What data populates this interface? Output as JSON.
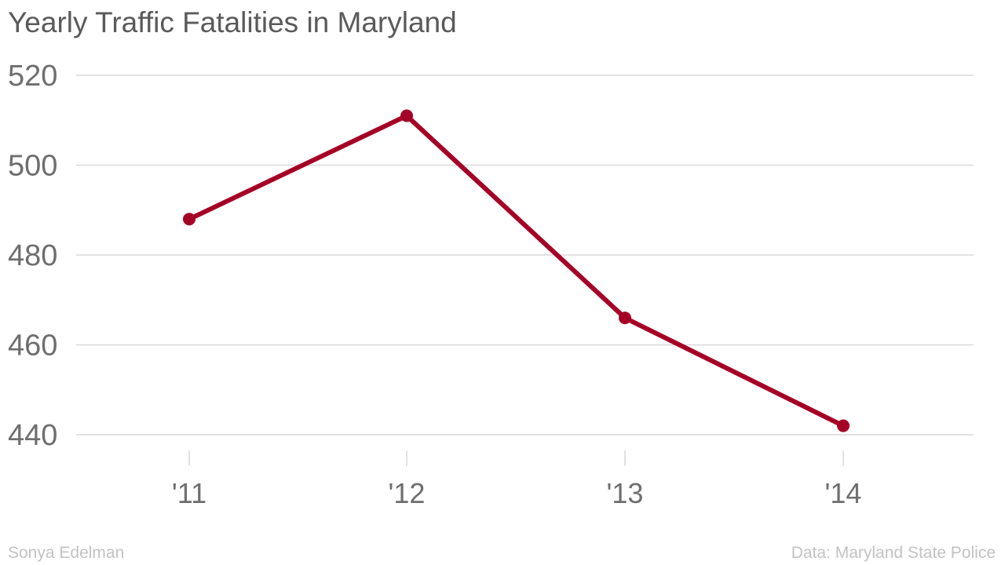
{
  "title": "Yearly Traffic Fatalities in Maryland",
  "footer": {
    "author": "Sonya Edelman",
    "source": "Data: Maryland State Police"
  },
  "colors": {
    "line": "#a50026",
    "grid": "#d9d9d9",
    "tick_text": "#6e6e6e"
  },
  "chart_data": {
    "type": "line",
    "categories": [
      "'11",
      "'12",
      "'13",
      "'14"
    ],
    "series": [
      {
        "values": [
          488,
          511,
          466,
          442
        ]
      }
    ],
    "yticks": [
      "440",
      "460",
      "480",
      "500",
      "520"
    ],
    "ylim": [
      440,
      520
    ],
    "grid": true,
    "legend": "none"
  }
}
